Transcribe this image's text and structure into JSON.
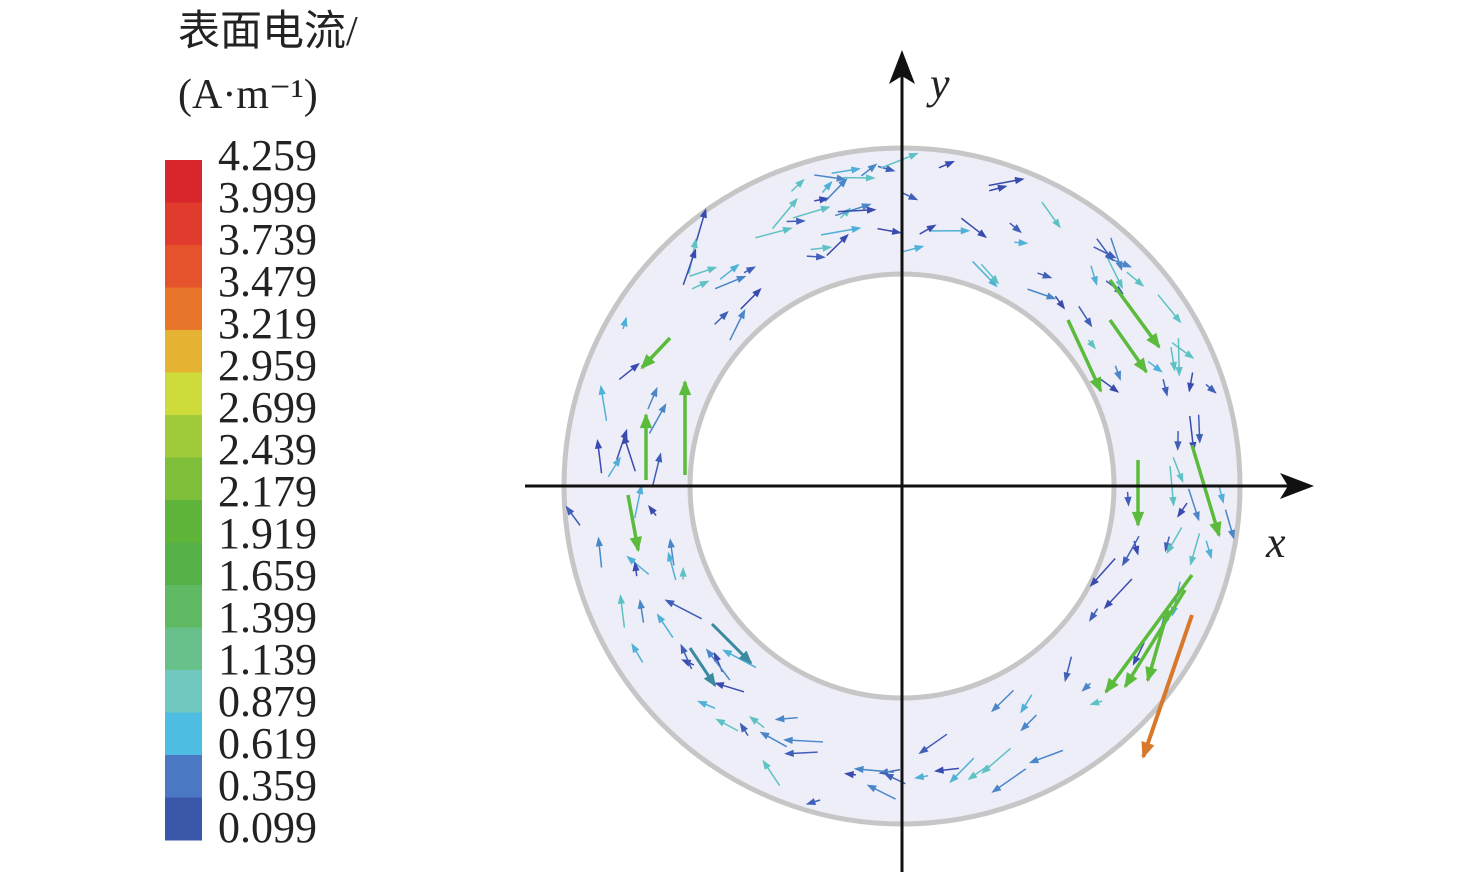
{
  "legend": {
    "title": "表面电流/",
    "unit": "(A·m⁻¹)",
    "labels": [
      "4.259",
      "3.999",
      "3.739",
      "3.479",
      "3.219",
      "2.959",
      "2.699",
      "2.439",
      "2.179",
      "1.919",
      "1.659",
      "1.399",
      "1.139",
      "0.879",
      "0.619",
      "0.359",
      "0.099"
    ]
  },
  "axes": {
    "x": "x",
    "y": "y"
  }
}
